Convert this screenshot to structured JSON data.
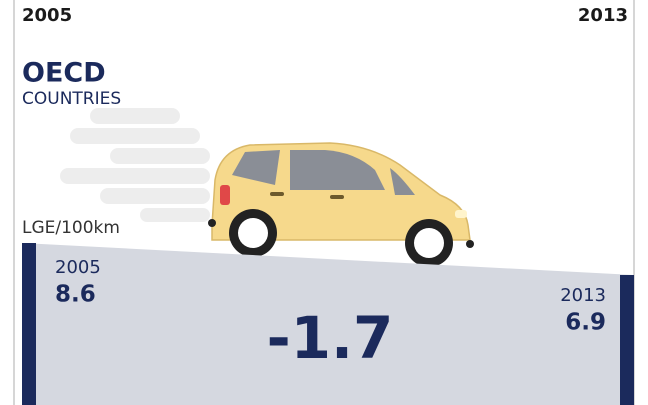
{
  "header": {
    "start_year": "2005",
    "end_year": "2013"
  },
  "region": {
    "title": "OECD",
    "subtitle": "COUNTRIES"
  },
  "unit": "LGE/100km",
  "start": {
    "year": "2005",
    "value": "8.6"
  },
  "end": {
    "year": "2013",
    "value": "6.9"
  },
  "change": "-1.7"
}
